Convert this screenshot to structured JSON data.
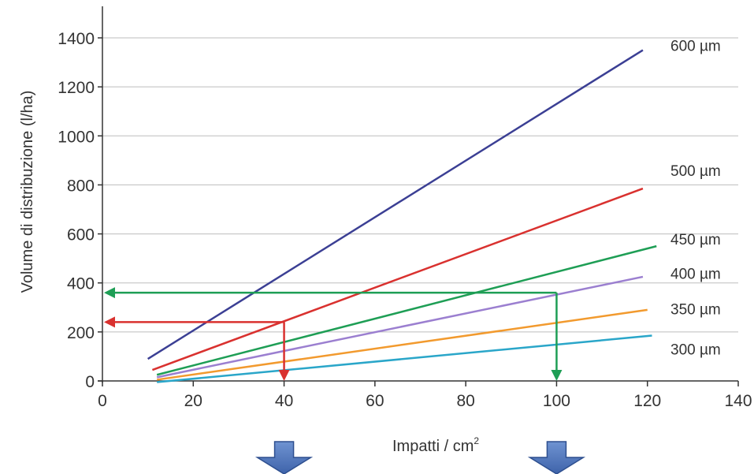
{
  "chart_data": {
    "type": "line",
    "xlabel": "Impatti / cm",
    "xlabel_sup": "2",
    "ylabel": "Volume di distribuzione (l/ha)",
    "xlim": [
      0,
      140
    ],
    "ylim": [
      0,
      1400
    ],
    "x_ticks": [
      0,
      20,
      40,
      60,
      80,
      100,
      120,
      140
    ],
    "y_ticks": [
      0,
      200,
      400,
      600,
      800,
      1000,
      1200,
      1400
    ],
    "grid": "horizontal",
    "series": [
      {
        "name": "600 µm",
        "color": "#3b3f94",
        "x": [
          10,
          119
        ],
        "y": [
          90,
          1350
        ]
      },
      {
        "name": "500 µm",
        "color": "#d9312f",
        "x": [
          11,
          119
        ],
        "y": [
          45,
          785
        ]
      },
      {
        "name": "450 µm",
        "color": "#1e9e55",
        "x": [
          12,
          122
        ],
        "y": [
          25,
          550
        ]
      },
      {
        "name": "400 µm",
        "color": "#9b7fd0",
        "x": [
          12,
          119
        ],
        "y": [
          15,
          425
        ]
      },
      {
        "name": "350 µm",
        "color": "#f29a2e",
        "x": [
          12,
          120
        ],
        "y": [
          5,
          290
        ]
      },
      {
        "name": "300 µm",
        "color": "#2aa6c9",
        "x": [
          12,
          121
        ],
        "y": [
          -5,
          185
        ]
      }
    ],
    "annotations": [
      {
        "color": "#d9312f",
        "x": 40,
        "y": 240
      },
      {
        "color": "#1e9e55",
        "x": 100,
        "y": 360
      }
    ],
    "down_arrows_x": [
      40,
      100
    ],
    "down_arrow_color": "#4a72b8"
  }
}
